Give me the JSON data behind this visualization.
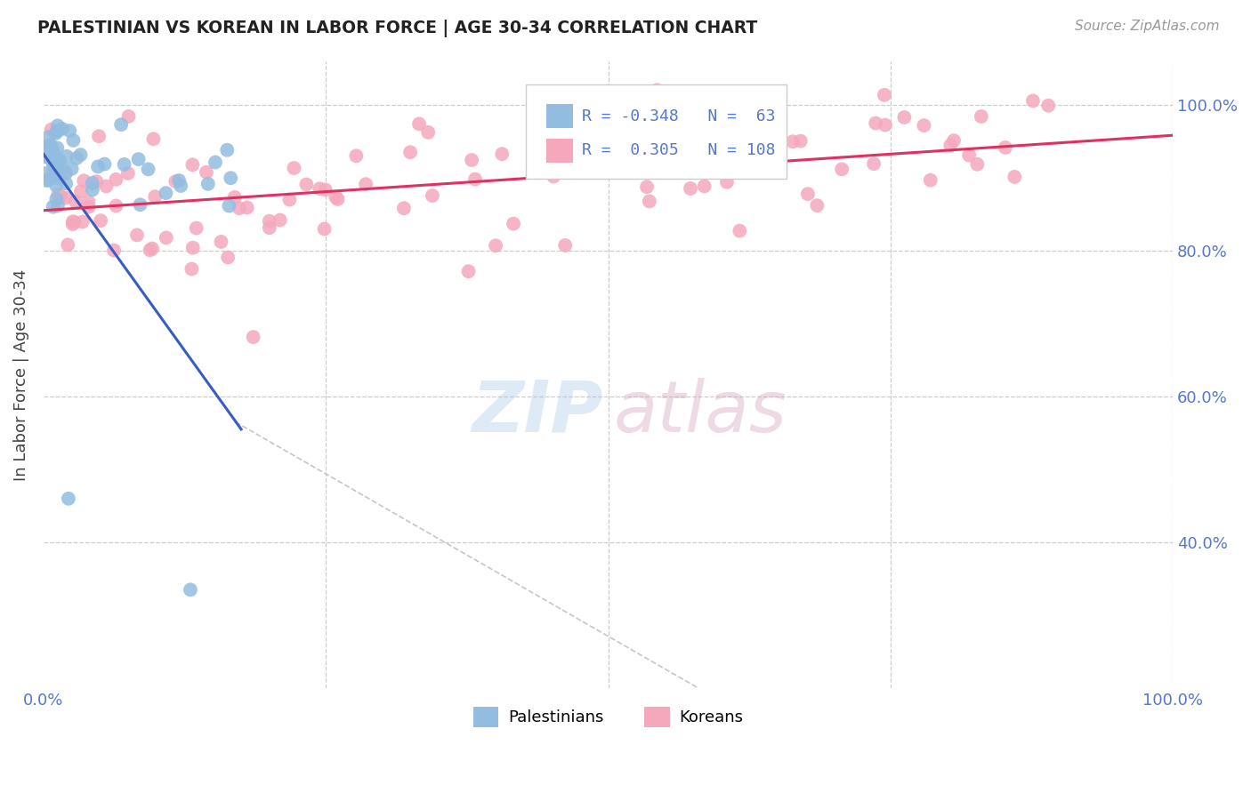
{
  "title": "PALESTINIAN VS KOREAN IN LABOR FORCE | AGE 30-34 CORRELATION CHART",
  "source": "Source: ZipAtlas.com",
  "ylabel": "In Labor Force | Age 30-34",
  "xlim": [
    0.0,
    1.0
  ],
  "ylim": [
    0.2,
    1.06
  ],
  "y_ticks": [
    0.4,
    0.6,
    0.8,
    1.0
  ],
  "y_tick_labels_right": [
    "40.0%",
    "60.0%",
    "80.0%",
    "100.0%"
  ],
  "R_blue": -0.348,
  "N_blue": 63,
  "R_pink": 0.305,
  "N_pink": 108,
  "blue_color": "#92bde0",
  "pink_color": "#f5a8bc",
  "blue_line_color": "#3a5bbf",
  "pink_line_color": "#e03060",
  "background_color": "#ffffff",
  "grid_color": "#cccccc",
  "tick_color": "#5577cc"
}
